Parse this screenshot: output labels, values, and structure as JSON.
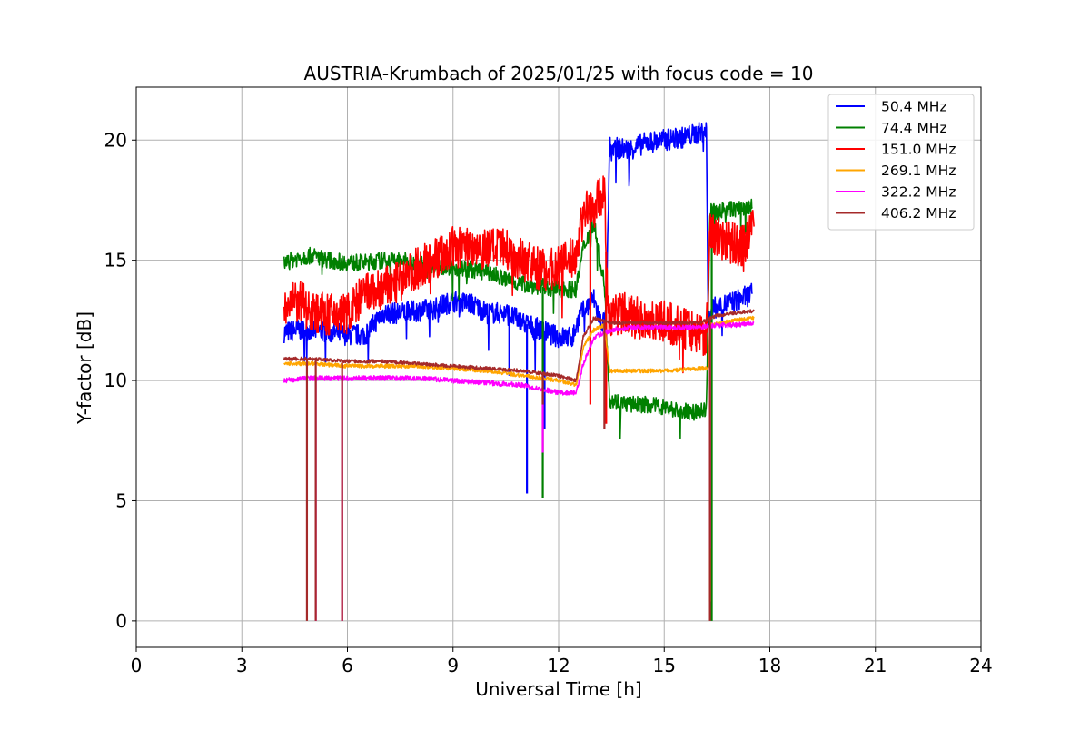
{
  "chart_data": {
    "type": "line",
    "title": "AUSTRIA-Krumbach of 2025/01/25 with focus code = 10",
    "xlabel": "Universal Time [h]",
    "ylabel": "Y-factor [dB]",
    "xlim": [
      0,
      24
    ],
    "ylim": [
      -1.1,
      22.2
    ],
    "xticks": [
      0,
      3,
      6,
      9,
      12,
      15,
      18,
      21,
      24
    ],
    "yticks": [
      0,
      5,
      10,
      15,
      20
    ],
    "grid": true,
    "legend_position": "top-right",
    "series": [
      {
        "name": " 50.4 MHz",
        "color": "#0000ff",
        "points": [
          [
            4.2,
            12.0
          ],
          [
            4.6,
            12.1
          ],
          [
            5.0,
            12.1
          ],
          [
            5.5,
            12.0
          ],
          [
            6.0,
            11.9
          ],
          [
            6.5,
            11.9
          ],
          [
            7.0,
            12.8
          ],
          [
            7.5,
            12.8
          ],
          [
            8.0,
            12.9
          ],
          [
            8.5,
            13.0
          ],
          [
            9.0,
            13.3
          ],
          [
            9.5,
            13.2
          ],
          [
            10.0,
            12.8
          ],
          [
            10.5,
            12.8
          ],
          [
            11.0,
            12.4
          ],
          [
            11.5,
            12.1
          ],
          [
            12.0,
            11.8
          ],
          [
            12.4,
            11.8
          ],
          [
            12.6,
            12.7
          ],
          [
            13.0,
            13.4
          ],
          [
            13.2,
            12.4
          ],
          [
            13.35,
            12.5
          ],
          [
            13.45,
            19.7
          ],
          [
            14.0,
            19.6
          ],
          [
            14.5,
            19.9
          ],
          [
            15.0,
            20.0
          ],
          [
            15.5,
            20.1
          ],
          [
            16.0,
            20.3
          ],
          [
            16.2,
            20.4
          ],
          [
            16.25,
            12.5
          ],
          [
            16.4,
            13.0
          ],
          [
            17.0,
            13.3
          ],
          [
            17.5,
            13.6
          ]
        ],
        "dips": [
          [
            11.1,
            5.3
          ],
          [
            11.6,
            8.0
          ],
          [
            10.6,
            10.2
          ]
        ]
      },
      {
        "name": " 74.4 MHz",
        "color": "#008000",
        "points": [
          [
            4.2,
            14.9
          ],
          [
            4.6,
            15.1
          ],
          [
            5.0,
            15.2
          ],
          [
            5.5,
            15.0
          ],
          [
            6.0,
            14.9
          ],
          [
            6.5,
            14.9
          ],
          [
            7.0,
            15.0
          ],
          [
            7.5,
            15.0
          ],
          [
            8.0,
            14.9
          ],
          [
            8.5,
            14.8
          ],
          [
            9.0,
            14.7
          ],
          [
            9.5,
            14.6
          ],
          [
            10.0,
            14.5
          ],
          [
            10.5,
            14.2
          ],
          [
            11.0,
            14.0
          ],
          [
            11.5,
            13.9
          ],
          [
            12.0,
            13.8
          ],
          [
            12.5,
            13.8
          ],
          [
            12.7,
            15.5
          ],
          [
            13.0,
            16.6
          ],
          [
            13.3,
            14.0
          ],
          [
            13.45,
            9.2
          ],
          [
            14.0,
            9.0
          ],
          [
            14.5,
            9.0
          ],
          [
            15.0,
            8.9
          ],
          [
            15.5,
            8.7
          ],
          [
            16.0,
            8.7
          ],
          [
            16.2,
            8.8
          ],
          [
            16.3,
            17.0
          ],
          [
            16.8,
            17.1
          ],
          [
            17.5,
            17.2
          ]
        ],
        "dips": [
          [
            11.55,
            5.1
          ],
          [
            16.35,
            0.0
          ]
        ]
      },
      {
        "name": "151.0 MHz",
        "color": "#ff0000",
        "points": [
          [
            4.2,
            13.0
          ],
          [
            4.6,
            13.3
          ],
          [
            5.0,
            12.9
          ],
          [
            5.5,
            12.7
          ],
          [
            6.0,
            12.8
          ],
          [
            6.5,
            13.6
          ],
          [
            7.0,
            13.8
          ],
          [
            7.5,
            14.1
          ],
          [
            8.0,
            14.7
          ],
          [
            8.5,
            15.1
          ],
          [
            9.0,
            15.5
          ],
          [
            9.5,
            15.6
          ],
          [
            10.0,
            15.5
          ],
          [
            10.5,
            15.4
          ],
          [
            11.0,
            15.0
          ],
          [
            11.5,
            14.6
          ],
          [
            12.0,
            14.7
          ],
          [
            12.5,
            15.2
          ],
          [
            12.7,
            17.0
          ],
          [
            13.0,
            17.2
          ],
          [
            13.3,
            18.0
          ],
          [
            13.4,
            12.7
          ],
          [
            13.8,
            12.8
          ],
          [
            14.2,
            12.6
          ],
          [
            14.8,
            12.5
          ],
          [
            15.5,
            12.2
          ],
          [
            16.0,
            12.0
          ],
          [
            16.2,
            11.9
          ],
          [
            16.3,
            16.2
          ],
          [
            16.8,
            15.8
          ],
          [
            17.2,
            15.5
          ],
          [
            17.55,
            16.4
          ]
        ],
        "dips": [
          [
            12.9,
            9.0
          ],
          [
            13.35,
            8.2
          ]
        ]
      },
      {
        "name": "269.1 MHz",
        "color": "#ffa500",
        "points": [
          [
            4.2,
            10.7
          ],
          [
            5.0,
            10.7
          ],
          [
            6.0,
            10.6
          ],
          [
            7.0,
            10.6
          ],
          [
            8.0,
            10.6
          ],
          [
            9.0,
            10.5
          ],
          [
            10.0,
            10.4
          ],
          [
            11.0,
            10.2
          ],
          [
            12.0,
            10.0
          ],
          [
            12.5,
            9.8
          ],
          [
            12.7,
            11.4
          ],
          [
            13.0,
            12.1
          ],
          [
            13.3,
            12.3
          ],
          [
            13.45,
            10.4
          ],
          [
            14.0,
            10.4
          ],
          [
            15.0,
            10.4
          ],
          [
            16.0,
            10.5
          ],
          [
            16.25,
            10.5
          ],
          [
            16.3,
            12.3
          ],
          [
            17.0,
            12.5
          ],
          [
            17.55,
            12.6
          ]
        ],
        "dips": [
          [
            16.3,
            0.8
          ]
        ]
      },
      {
        "name": "322.2 MHz",
        "color": "#ff00ff",
        "points": [
          [
            4.2,
            10.0
          ],
          [
            5.0,
            10.1
          ],
          [
            6.0,
            10.1
          ],
          [
            7.0,
            10.1
          ],
          [
            8.0,
            10.1
          ],
          [
            9.0,
            10.0
          ],
          [
            10.0,
            9.9
          ],
          [
            11.0,
            9.8
          ],
          [
            12.0,
            9.5
          ],
          [
            12.5,
            9.5
          ],
          [
            12.7,
            10.7
          ],
          [
            13.0,
            11.8
          ],
          [
            13.5,
            12.1
          ],
          [
            14.0,
            12.2
          ],
          [
            15.0,
            12.2
          ],
          [
            16.0,
            12.2
          ],
          [
            16.5,
            12.3
          ],
          [
            17.0,
            12.3
          ],
          [
            17.55,
            12.4
          ]
        ],
        "dips": [
          [
            5.1,
            0.0
          ],
          [
            5.85,
            0.0
          ],
          [
            11.55,
            7.0
          ],
          [
            16.3,
            3.0
          ]
        ]
      },
      {
        "name": "406.2 MHz",
        "color": "#a52a2a",
        "points": [
          [
            4.2,
            10.9
          ],
          [
            5.0,
            10.9
          ],
          [
            6.0,
            10.8
          ],
          [
            7.0,
            10.8
          ],
          [
            8.0,
            10.7
          ],
          [
            9.0,
            10.6
          ],
          [
            10.0,
            10.5
          ],
          [
            11.0,
            10.4
          ],
          [
            12.0,
            10.2
          ],
          [
            12.5,
            10.0
          ],
          [
            12.7,
            11.8
          ],
          [
            13.0,
            12.6
          ],
          [
            13.5,
            12.4
          ],
          [
            14.0,
            12.4
          ],
          [
            15.0,
            12.4
          ],
          [
            16.0,
            12.4
          ],
          [
            16.5,
            12.7
          ],
          [
            17.0,
            12.8
          ],
          [
            17.55,
            12.9
          ]
        ],
        "dips": [
          [
            4.85,
            0.0
          ],
          [
            5.1,
            0.0
          ],
          [
            5.85,
            0.0
          ],
          [
            11.55,
            9.0
          ],
          [
            13.3,
            8.0
          ],
          [
            16.3,
            0.0
          ]
        ]
      }
    ]
  }
}
